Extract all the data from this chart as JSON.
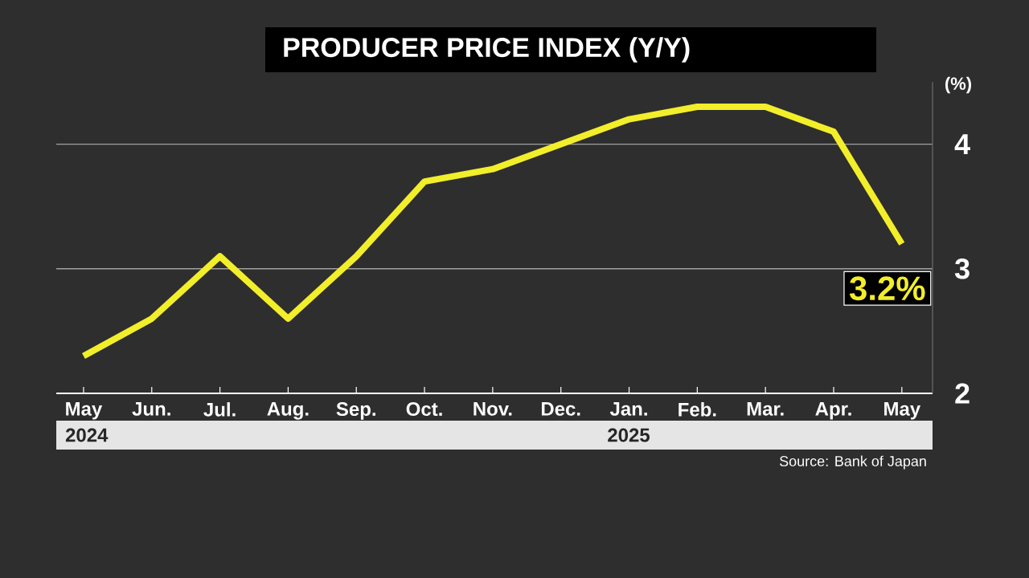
{
  "chart_data": {
    "type": "line",
    "title": "PRODUCER PRICE INDEX (Y/Y)",
    "ylabel": "(%)",
    "categories": [
      "May",
      "Jun.",
      "Jul.",
      "Aug.",
      "Sep.",
      "Oct.",
      "Nov.",
      "Dec.",
      "Jan.",
      "Feb.",
      "Mar.",
      "Apr.",
      "May"
    ],
    "series": [
      {
        "color": "#f2ee2a",
        "values": [
          2.3,
          2.6,
          3.1,
          2.6,
          3.1,
          3.7,
          3.8,
          4.0,
          4.2,
          4.3,
          4.3,
          4.1,
          3.2
        ],
        "value_labels": [
          null,
          null,
          null,
          null,
          null,
          null,
          null,
          null,
          null,
          null,
          null,
          null,
          "3.2%"
        ]
      }
    ],
    "ylim": [
      2,
      4.5
    ],
    "yticks": [
      2,
      3,
      4
    ],
    "grid": "y",
    "marker": "none",
    "line_style": "solid",
    "annotations": [
      "2024",
      "2025",
      "Source: Bank of Japan"
    ]
  }
}
